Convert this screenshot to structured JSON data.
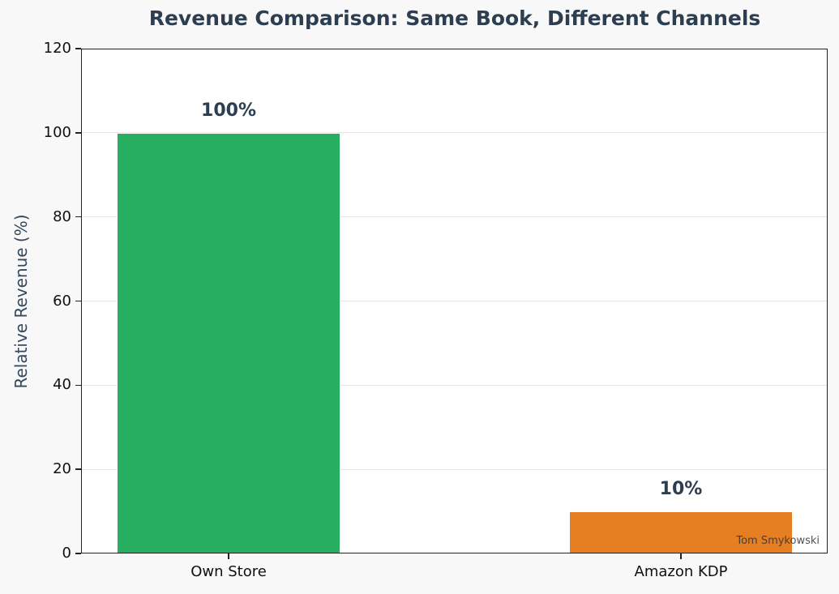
{
  "chart_data": {
    "type": "bar",
    "title": "Revenue Comparison: Same Book, Different Channels",
    "xlabel": "",
    "ylabel": "Relative Revenue (%)",
    "categories": [
      "Own Store",
      "Amazon KDP"
    ],
    "values": [
      100,
      10
    ],
    "data_labels": [
      "100%",
      "10%"
    ],
    "colors": [
      "#27ae60",
      "#e67e22"
    ],
    "ylim": [
      0,
      120
    ],
    "yticks": [
      0,
      20,
      40,
      60,
      80,
      100,
      120
    ],
    "grid": "y-axis, light gray",
    "legend": "none",
    "annotations": [
      "Tom Smykowski"
    ]
  },
  "title": "Revenue Comparison: Same Book, Different Channels",
  "ylabel": "Relative Revenue (%)",
  "yticks": [
    "0",
    "20",
    "40",
    "60",
    "80",
    "100",
    "120"
  ],
  "bars": [
    {
      "category": "Own Store",
      "label": "100%",
      "color": "#27ae60"
    },
    {
      "category": "Amazon KDP",
      "label": "10%",
      "color": "#e67e22"
    }
  ],
  "watermark": "Tom Smykowski"
}
